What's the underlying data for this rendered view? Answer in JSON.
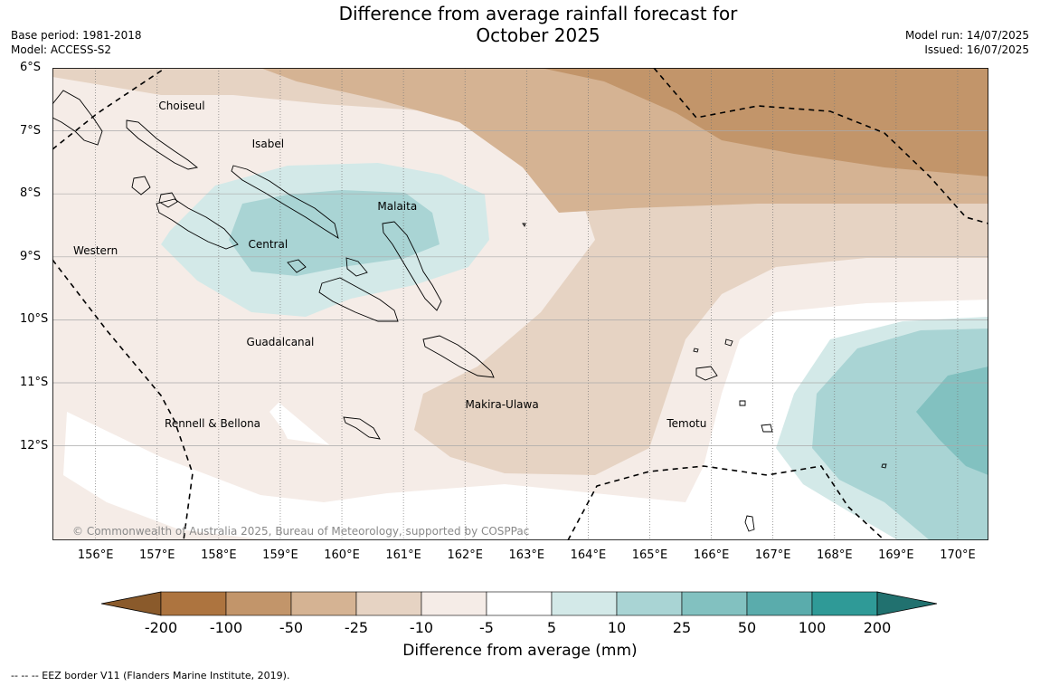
{
  "title_line1": "Difference from average rainfall forecast for",
  "title_line2": "October 2025",
  "base_period": "Base period: 1981-2018",
  "model": "Model: ACCESS-S2",
  "model_run": "Model run: 14/07/2025",
  "issued": "Issued: 16/07/2025",
  "copyright": "© Commonwealth of Australia 2025, Bureau of Meteorology, supported by COSPPac",
  "map": {
    "lon_range": [
      155.3,
      170.5
    ],
    "lat_range": [
      -6.0,
      -13.5
    ],
    "lat_ticks": [
      "6°S",
      "7°S",
      "8°S",
      "9°S",
      "10°S",
      "11°S",
      "12°S"
    ],
    "lon_ticks": [
      "156°E",
      "157°E",
      "158°E",
      "159°E",
      "160°E",
      "161°E",
      "162°E",
      "163°E",
      "164°E",
      "165°E",
      "166°E",
      "167°E",
      "168°E",
      "169°E",
      "170°E"
    ],
    "regions": [
      {
        "name": "Choiseul",
        "lon": 157.4,
        "lat": -6.6
      },
      {
        "name": "Isabel",
        "lon": 158.8,
        "lat": -7.2
      },
      {
        "name": "Malaita",
        "lon": 160.9,
        "lat": -8.2
      },
      {
        "name": "Western",
        "lon": 156.0,
        "lat": -8.9
      },
      {
        "name": "Central",
        "lon": 158.8,
        "lat": -8.8
      },
      {
        "name": "Guadalcanal",
        "lon": 159.0,
        "lat": -10.35
      },
      {
        "name": "Makira-Ulawa",
        "lon": 162.6,
        "lat": -11.35
      },
      {
        "name": "Rennell & Bellona",
        "lon": 157.9,
        "lat": -11.65
      },
      {
        "name": "Temotu",
        "lon": 165.6,
        "lat": -11.65
      }
    ]
  },
  "colors": {
    "c_m200": "#8a5a2b",
    "c_m100": "#ad743f",
    "c_m50": "#c2956a",
    "c_m25": "#d5b393",
    "c_m10": "#e6d3c3",
    "c_m5": "#f5ece7",
    "c_0": "#ffffff",
    "c_5": "#d3e9e8",
    "c_10": "#a9d4d4",
    "c_25": "#82c1c0",
    "c_50": "#5aacac",
    "c_100": "#2f9a97",
    "c_200": "#21716f"
  },
  "colorbar": {
    "ticks": [
      "-200",
      "-100",
      "-50",
      "-25",
      "-10",
      "-5",
      "5",
      "10",
      "25",
      "50",
      "100",
      "200"
    ],
    "label": "Difference from average (mm)"
  },
  "legend_note": "-- -- -- EEZ border V11 (Flanders Marine Institute, 2019)."
}
